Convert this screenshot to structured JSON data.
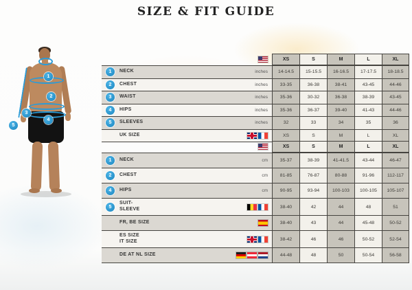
{
  "title": "SIZE & FIT GUIDE",
  "accent_color": "#2b9bd7",
  "figure": {
    "description": "rear view of male model with measurement bands",
    "badges": [
      {
        "n": "1",
        "label": "neck"
      },
      {
        "n": "2",
        "label": "chest"
      },
      {
        "n": "3",
        "label": "waist"
      },
      {
        "n": "4",
        "label": "hips"
      },
      {
        "n": "5",
        "label": "sleeves"
      }
    ]
  },
  "table_inches": {
    "region_flag": "us-flag",
    "columns": [
      "XS",
      "S",
      "M",
      "L",
      "XL"
    ],
    "rows": [
      {
        "num": "1",
        "label_lines": [
          "NECK"
        ],
        "unit": "inches",
        "flags": [],
        "values": [
          "14-14.5",
          "15-15.5",
          "16-16.5",
          "17-17.5",
          "18-18.5"
        ]
      },
      {
        "num": "2",
        "label_lines": [
          "CHEST"
        ],
        "unit": "inches",
        "flags": [],
        "values": [
          "33-35",
          "36-38",
          "38-41",
          "43-45",
          "44-46"
        ]
      },
      {
        "num": "3",
        "label_lines": [
          "WAIST"
        ],
        "unit": "inches",
        "flags": [],
        "values": [
          "35-36",
          "30-32",
          "36-38",
          "38-39",
          "43-45"
        ]
      },
      {
        "num": "4",
        "label_lines": [
          "HIPS"
        ],
        "unit": "inches",
        "flags": [],
        "values": [
          "35-36",
          "36-37",
          "39-40",
          "41-43",
          "44-46"
        ]
      },
      {
        "num": "5",
        "label_lines": [
          "SLEEVES"
        ],
        "unit": "inches",
        "flags": [],
        "values": [
          "32",
          "33",
          "34",
          "35",
          "36"
        ]
      },
      {
        "num": "",
        "label_lines": [
          "UK size"
        ],
        "unit": "",
        "flags": [
          "uk-flag",
          "fr-flag"
        ],
        "values": [
          "XS",
          "S",
          "M",
          "L",
          "XL"
        ]
      }
    ]
  },
  "table_cm": {
    "region_flag": "us-flag",
    "columns": [
      "XS",
      "S",
      "M",
      "L",
      "XL"
    ],
    "rows": [
      {
        "num": "1",
        "label_lines": [
          "NECK"
        ],
        "unit": "cm",
        "flags": [],
        "values": [
          "35-37",
          "38-39",
          "41-41.5",
          "43-44",
          "46-47"
        ]
      },
      {
        "num": "2",
        "label_lines": [
          "CHEST"
        ],
        "unit": "cm",
        "flags": [],
        "values": [
          "81-85",
          "76-87",
          "80-88",
          "91-96",
          "112-117"
        ]
      },
      {
        "num": "4",
        "label_lines": [
          "HIPS"
        ],
        "unit": "cm",
        "flags": [],
        "values": [
          "90-95",
          "93-94",
          "100-103",
          "100-105",
          "105-107"
        ]
      },
      {
        "num": "5",
        "label_lines": [
          "Suit-",
          "Sleeve"
        ],
        "unit": "",
        "flags": [
          "be-flag",
          "fr-flag"
        ],
        "values": [
          "38-40",
          "42",
          "44",
          "48",
          "51"
        ]
      },
      {
        "num": "",
        "label_lines": [
          "FR, BE Size"
        ],
        "unit": "",
        "flags": [
          "es-flag"
        ],
        "values": [
          "38-40",
          "43",
          "44",
          "45-48",
          "50-52"
        ]
      },
      {
        "num": "",
        "label_lines": [
          "ES size",
          "IT size"
        ],
        "unit": "",
        "flags": [
          "uk-flag",
          "fr-flag"
        ],
        "values": [
          "38-42",
          "46",
          "46",
          "50-52",
          "52-54"
        ]
      },
      {
        "num": "",
        "label_lines": [
          "DE AT NL SIZE"
        ],
        "unit": "",
        "flags": [
          "de-flag",
          "at-flag",
          "nl-flag"
        ],
        "values": [
          "44-48",
          "48",
          "50",
          "50-54",
          "56-58"
        ]
      }
    ]
  }
}
